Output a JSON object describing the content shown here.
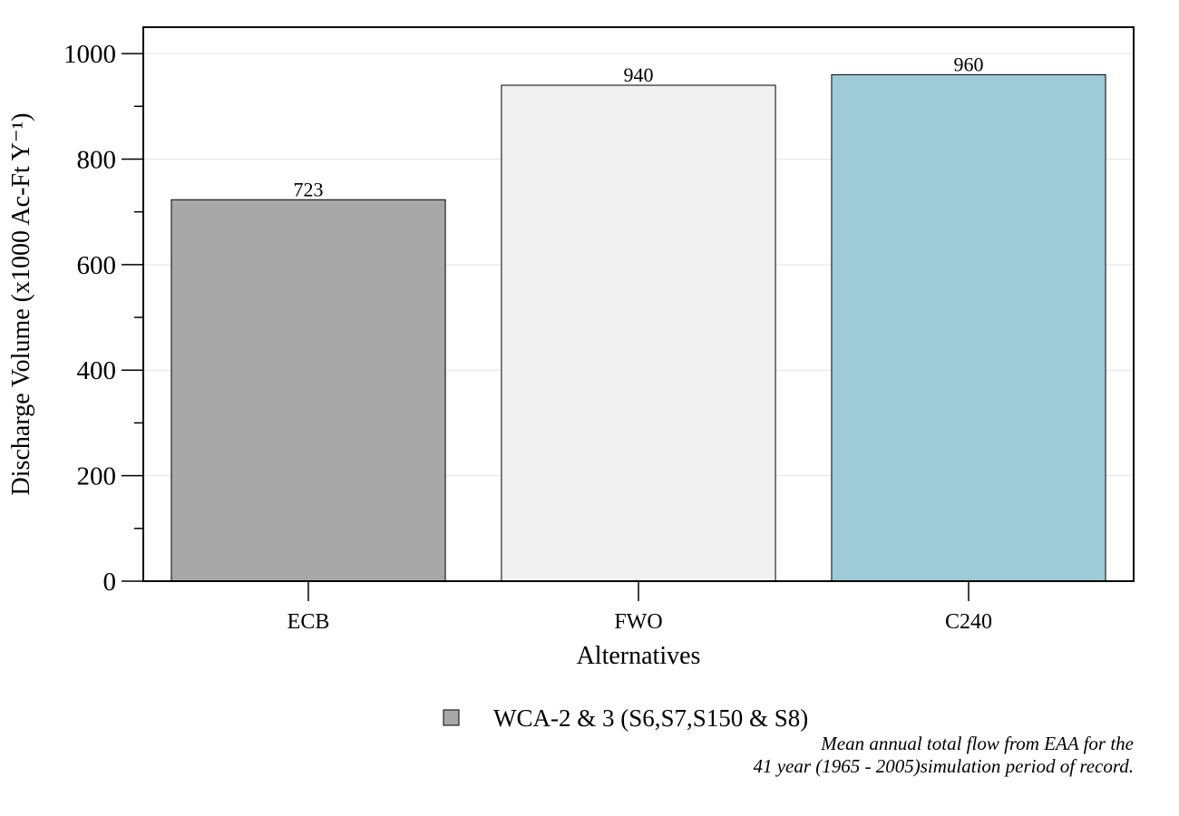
{
  "chart_data": {
    "type": "bar",
    "categories": [
      "ECB",
      "FWO",
      "C240"
    ],
    "values": [
      723,
      940,
      960
    ],
    "data_labels": [
      "723",
      "940",
      "960"
    ],
    "bar_colors": [
      "#a8a8a8",
      "#f1f1f1",
      "#9ecbd7"
    ],
    "title": "",
    "xlabel": "Alternatives",
    "ylabel": "Discharge Volume (x1000 Ac-Ft Y⁻¹)",
    "ylim": [
      0,
      1050
    ],
    "y_ticks": [
      0,
      200,
      400,
      600,
      800,
      1000
    ],
    "y_tick_labels": [
      "0",
      "200",
      "400",
      "600",
      "800",
      "1000"
    ],
    "grid": true,
    "legend": {
      "placement": "bottom-center",
      "entries": [
        {
          "label": "WCA-2 & 3 (S6,S7,S150 & S8)",
          "color": "#a8a8a8"
        }
      ]
    },
    "annotation": {
      "line1": "Mean annual total flow from EAA for the",
      "line2": "41 year (1965 - 2005)simulation period of record."
    }
  }
}
